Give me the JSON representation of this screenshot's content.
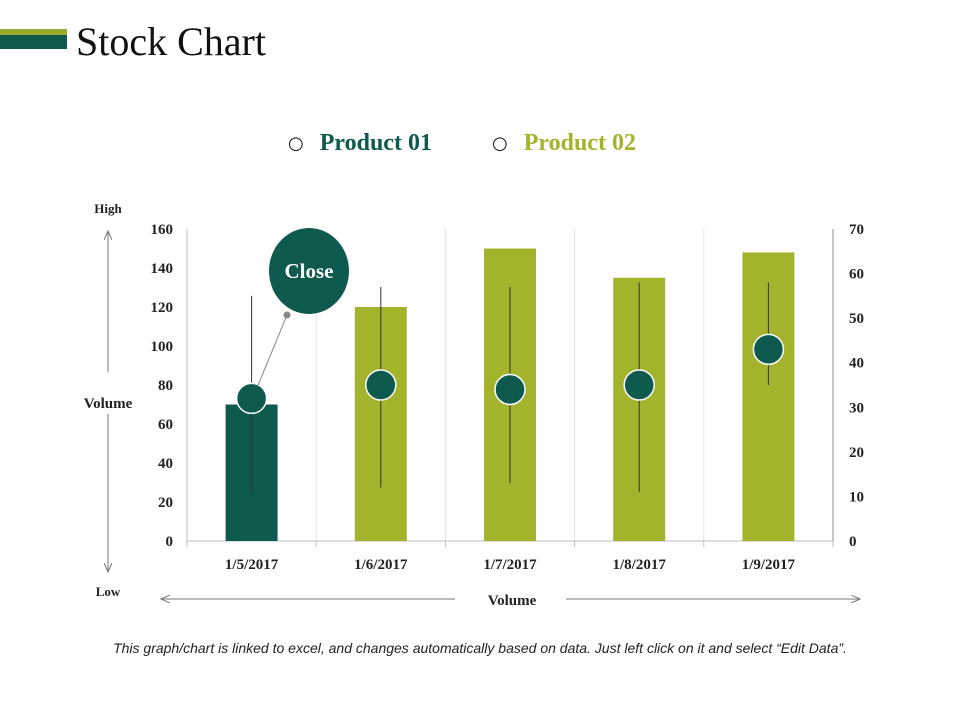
{
  "page": {
    "title": "Stock Chart",
    "footnote": "This graph/chart is linked to excel, and changes automatically based on data. Just left click on it and select “Edit Data”."
  },
  "colors": {
    "product01": "#0f5a4f",
    "product02": "#a3b42c",
    "title_accent_top": "#9aab2e",
    "title_accent_bottom": "#0f5a4f"
  },
  "legend": [
    {
      "label": "Product 01",
      "color": "#0f5a4f"
    },
    {
      "label": "Product 02",
      "color": "#a3b42c"
    }
  ],
  "annotations": {
    "callout": "Close",
    "high_label": "High",
    "low_label": "Low",
    "volume_axis_label": "Volume"
  },
  "chart_data": {
    "type": "bar",
    "categories": [
      "1/5/2017",
      "1/6/2017",
      "1/7/2017",
      "1/8/2017",
      "1/9/2017"
    ],
    "xlabel": "Volume",
    "ylabel": "Volume",
    "ylim": [
      0,
      160
    ],
    "yticks": [
      0,
      20,
      40,
      60,
      80,
      100,
      120,
      140,
      160
    ],
    "y2lim": [
      0,
      70
    ],
    "y2ticks": [
      0,
      10,
      20,
      30,
      40,
      50,
      60,
      70
    ],
    "grid": "vertical",
    "legend_position": "top",
    "series": [
      {
        "name": "Volume",
        "axis": "left",
        "values": [
          70,
          120,
          150,
          135,
          148
        ],
        "colors": [
          "#0f5a4f",
          "#a3b42c",
          "#a3b42c",
          "#a3b42c",
          "#a3b42c"
        ]
      },
      {
        "name": "Close",
        "axis": "right",
        "type": "stock",
        "high": [
          55,
          57,
          57,
          58,
          58
        ],
        "low": [
          11,
          12,
          13,
          11,
          35
        ],
        "close": [
          32,
          35,
          34,
          35,
          43
        ]
      }
    ]
  }
}
